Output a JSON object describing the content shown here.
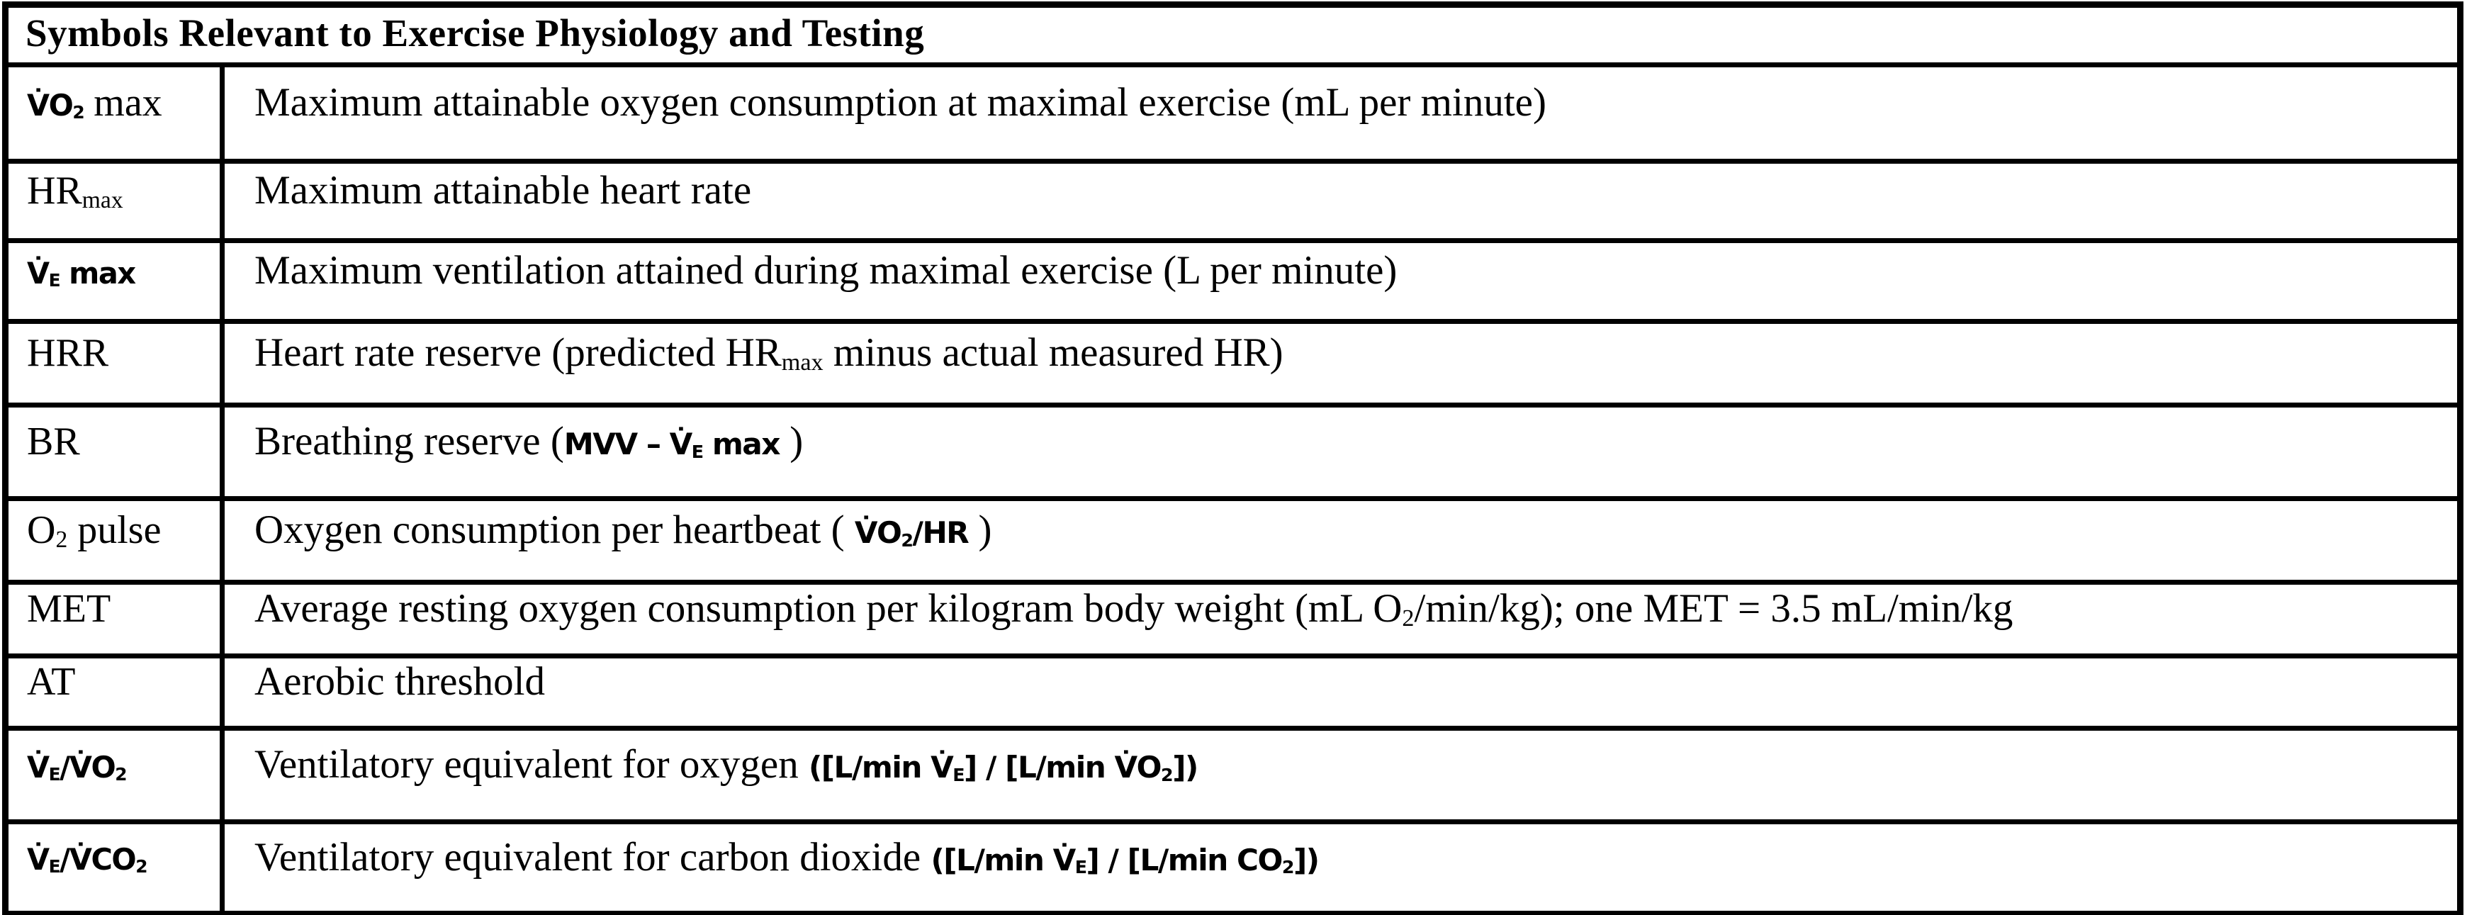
{
  "colors": {
    "border": "#000000",
    "background": "#ffffff",
    "text": "#000000"
  },
  "table": {
    "title": "Symbols Relevant to Exercise Physiology and Testing",
    "rows": [
      {
        "symbol": "`V̇O~2~` max",
        "description": "Maximum attainable oxygen consumption at maximal exercise (mL per minute)"
      },
      {
        "symbol": "HR~max~",
        "description": "Maximum attainable heart rate"
      },
      {
        "symbol": "`V̇~E~ max`",
        "description": "Maximum ventilation attained during maximal exercise (L per minute)"
      },
      {
        "symbol": "HRR",
        "description": "Heart rate reserve (predicted HR~max~ minus actual measured HR)"
      },
      {
        "symbol": "BR",
        "description": "Breathing reserve (`MVV – V̇~E~ max` )"
      },
      {
        "symbol": "O~2~ pulse",
        "description": "Oxygen consumption per heartbeat ( `V̇O~2~/HR` )"
      },
      {
        "symbol": "MET",
        "description": "Average resting oxygen consumption per kilogram body weight (mL O~2~/min/kg); one MET = 3.5 mL/min/kg"
      },
      {
        "symbol": "AT",
        "description": "Aerobic threshold"
      },
      {
        "symbol": "`V̇~E~/V̇O~2~`",
        "description": "Ventilatory equivalent for oxygen `([L/min V̇~E~] / [L/min V̇O~2~])`"
      },
      {
        "symbol": "`V̇~E~/V̇CO~2~`",
        "description": "Ventilatory equivalent for carbon dioxide `([L/min V̇~E~] / [L/min CO~2~])`"
      }
    ]
  }
}
